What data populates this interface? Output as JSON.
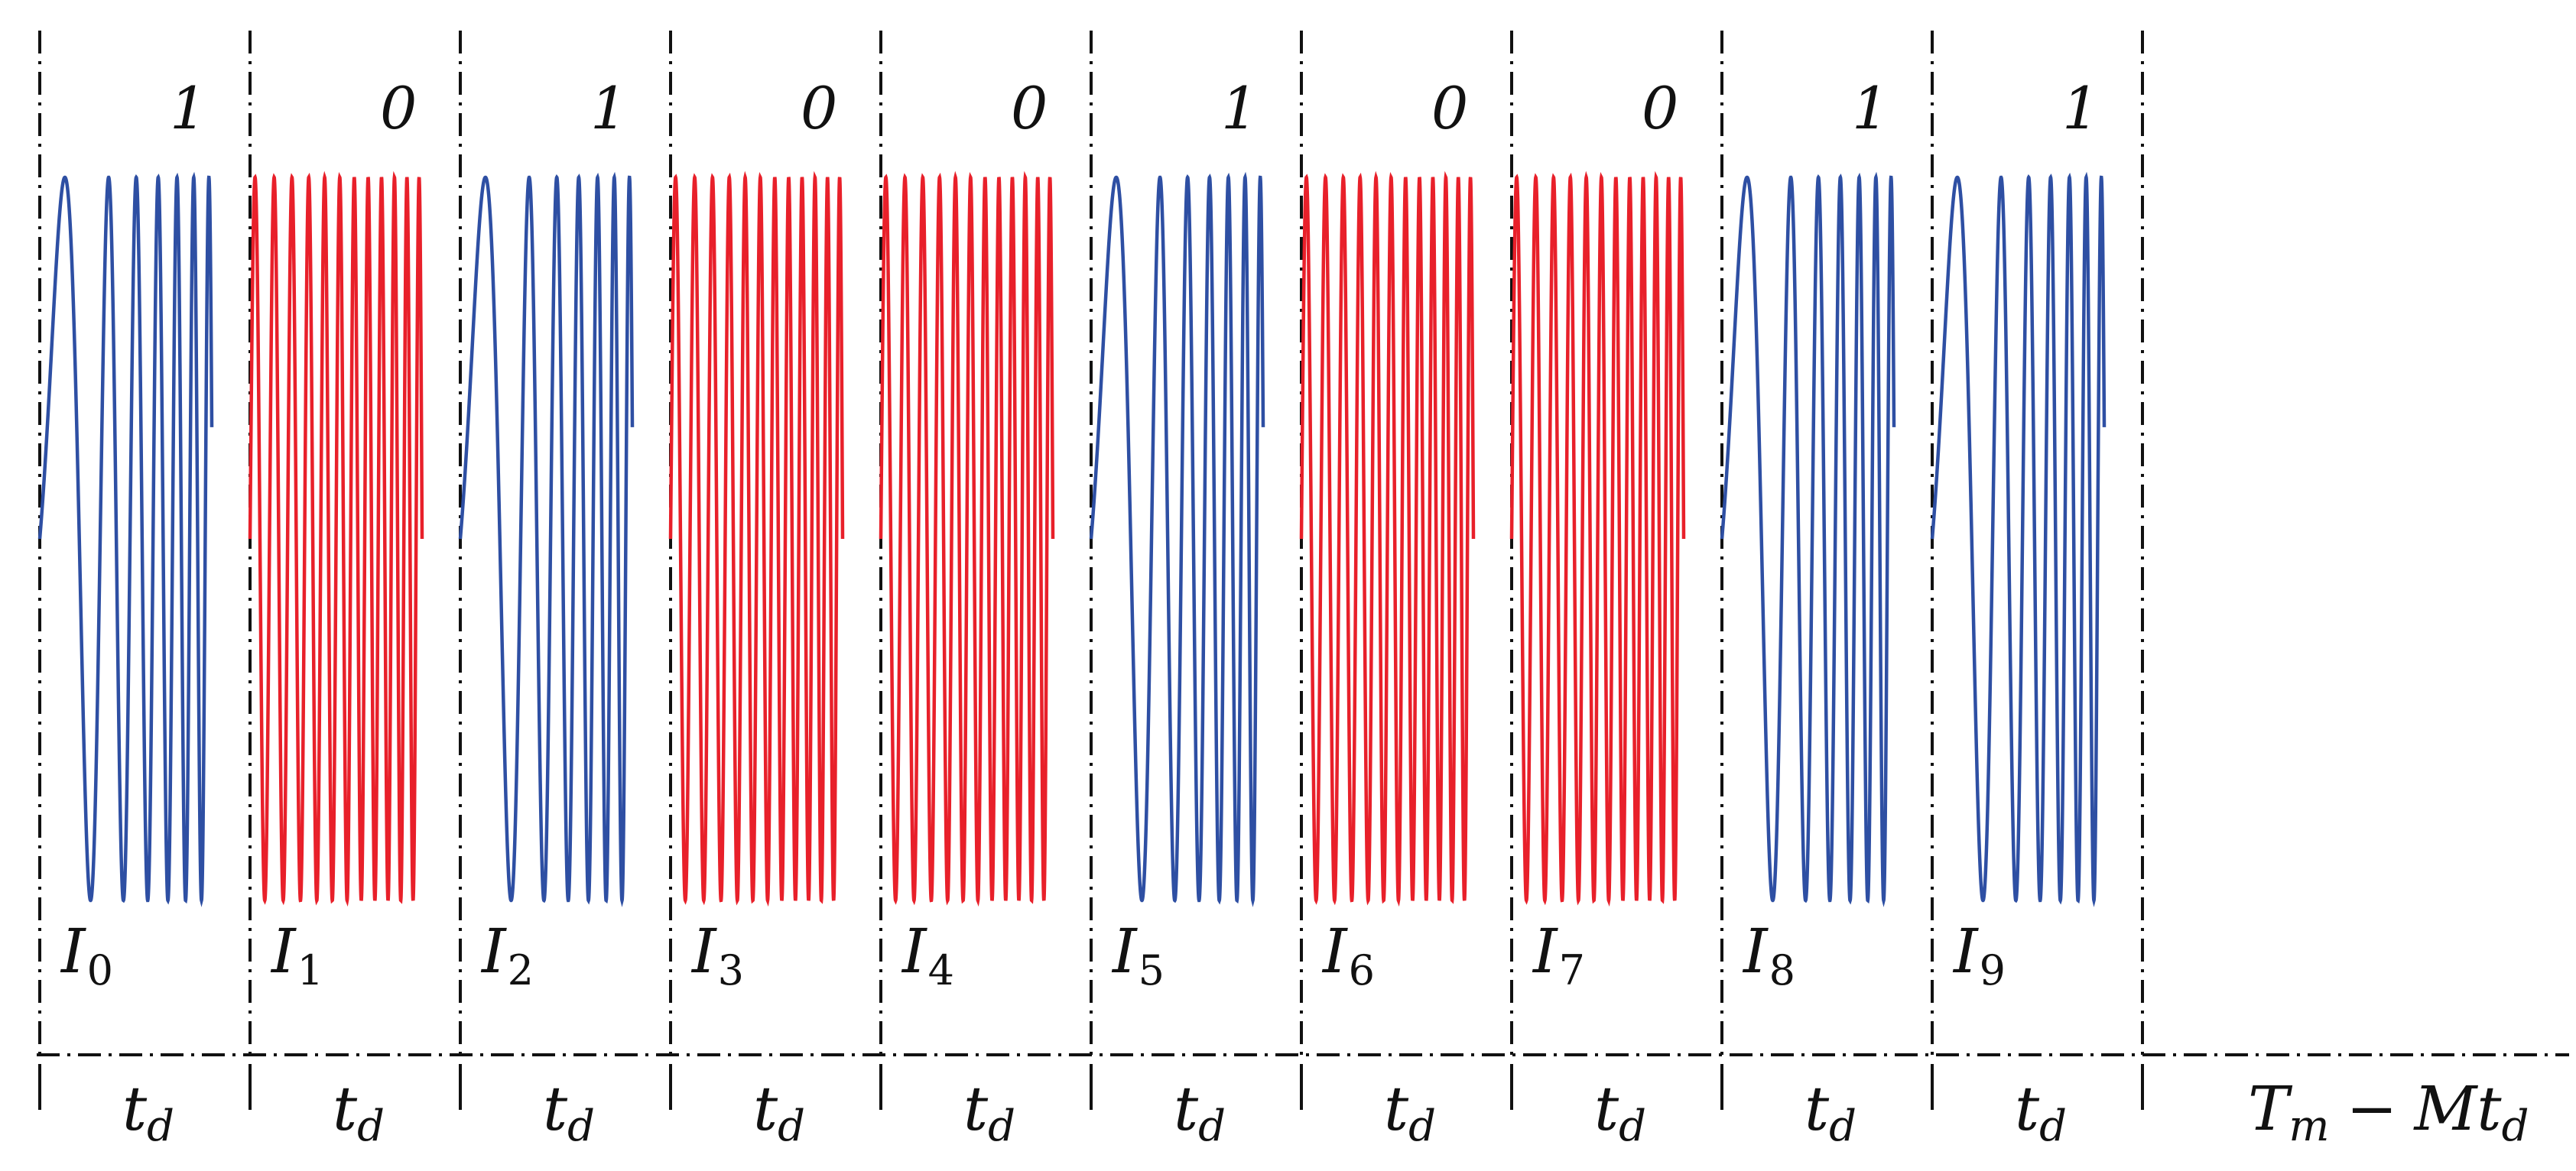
{
  "colors": {
    "bit_one": "#2E4FA3",
    "bit_zero": "#E8202A",
    "guides": "#111111"
  },
  "slots": [
    {
      "bit": "1",
      "label": "I",
      "index": "0",
      "duration": "t",
      "duration_sub": "d"
    },
    {
      "bit": "0",
      "label": "I",
      "index": "1",
      "duration": "t",
      "duration_sub": "d"
    },
    {
      "bit": "1",
      "label": "I",
      "index": "2",
      "duration": "t",
      "duration_sub": "d"
    },
    {
      "bit": "0",
      "label": "I",
      "index": "3",
      "duration": "t",
      "duration_sub": "d"
    },
    {
      "bit": "0",
      "label": "I",
      "index": "4",
      "duration": "t",
      "duration_sub": "d"
    },
    {
      "bit": "1",
      "label": "I",
      "index": "5",
      "duration": "t",
      "duration_sub": "d"
    },
    {
      "bit": "0",
      "label": "I",
      "index": "6",
      "duration": "t",
      "duration_sub": "d"
    },
    {
      "bit": "0",
      "label": "I",
      "index": "7",
      "duration": "t",
      "duration_sub": "d"
    },
    {
      "bit": "1",
      "label": "I",
      "index": "8",
      "duration": "t",
      "duration_sub": "d"
    },
    {
      "bit": "1",
      "label": "I",
      "index": "9",
      "duration": "t",
      "duration_sub": "d"
    }
  ],
  "remainder": {
    "T": "T",
    "T_sub": "m",
    "minus": "−",
    "M": "M",
    "t": "t",
    "t_sub": "d"
  }
}
